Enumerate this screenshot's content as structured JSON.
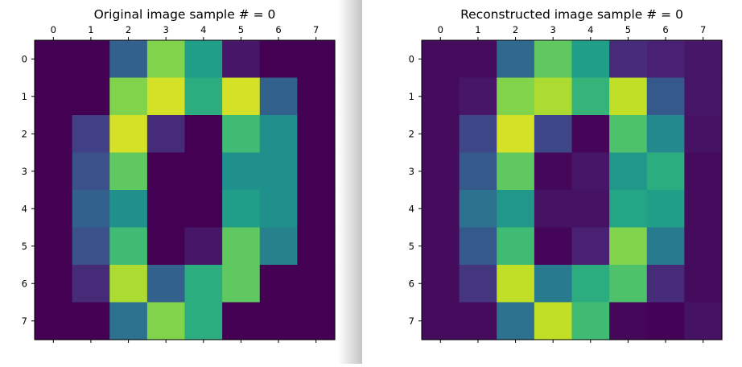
{
  "chart_data": [
    {
      "type": "heatmap",
      "title": "Original image sample # = 0",
      "xlabel": "",
      "ylabel": "",
      "x_ticks": [
        "0",
        "1",
        "2",
        "3",
        "4",
        "5",
        "6",
        "7"
      ],
      "y_ticks": [
        "0",
        "1",
        "2",
        "3",
        "4",
        "5",
        "6",
        "7"
      ],
      "colormap": "viridis",
      "value_range": [
        0,
        16
      ],
      "grid": false,
      "values": [
        [
          0,
          0,
          5,
          13,
          9,
          1,
          0,
          0
        ],
        [
          0,
          0,
          13,
          15,
          10,
          15,
          5,
          0
        ],
        [
          0,
          3,
          15,
          2,
          0,
          11,
          8,
          0
        ],
        [
          0,
          4,
          12,
          0,
          0,
          8,
          8,
          0
        ],
        [
          0,
          5,
          8,
          0,
          0,
          9,
          8,
          0
        ],
        [
          0,
          4,
          11,
          0,
          1,
          12,
          7,
          0
        ],
        [
          0,
          2,
          14,
          5,
          10,
          12,
          0,
          0
        ],
        [
          0,
          0,
          6,
          13,
          10,
          0,
          0,
          0
        ]
      ]
    },
    {
      "type": "heatmap",
      "title": "Reconstructed image sample # = 0",
      "xlabel": "",
      "ylabel": "",
      "x_ticks": [
        "0",
        "1",
        "2",
        "3",
        "4",
        "5",
        "6",
        "7"
      ],
      "y_ticks": [
        "0",
        "1",
        "2",
        "3",
        "4",
        "5",
        "6",
        "7"
      ],
      "colormap": "viridis",
      "value_range": [
        0,
        16
      ],
      "grid": false,
      "values": [
        [
          0.5,
          0.5,
          5.5,
          12.0,
          9.0,
          2.0,
          1.5,
          1.0
        ],
        [
          0.5,
          1.0,
          13.0,
          14.0,
          10.5,
          14.5,
          4.5,
          1.0
        ],
        [
          0.5,
          3.5,
          15.0,
          3.5,
          0.2,
          11.5,
          7.5,
          0.8
        ],
        [
          0.5,
          4.5,
          12.0,
          0.3,
          1.0,
          8.5,
          10.0,
          0.5
        ],
        [
          0.5,
          6.0,
          8.5,
          0.8,
          0.8,
          9.5,
          9.0,
          0.5
        ],
        [
          0.5,
          4.5,
          11.0,
          0.2,
          1.5,
          13.0,
          6.5,
          0.5
        ],
        [
          0.5,
          2.5,
          14.5,
          6.5,
          10.0,
          11.5,
          2.0,
          0.5
        ],
        [
          0.5,
          0.5,
          6.0,
          14.5,
          11.0,
          0.3,
          0.1,
          0.8
        ]
      ]
    }
  ]
}
